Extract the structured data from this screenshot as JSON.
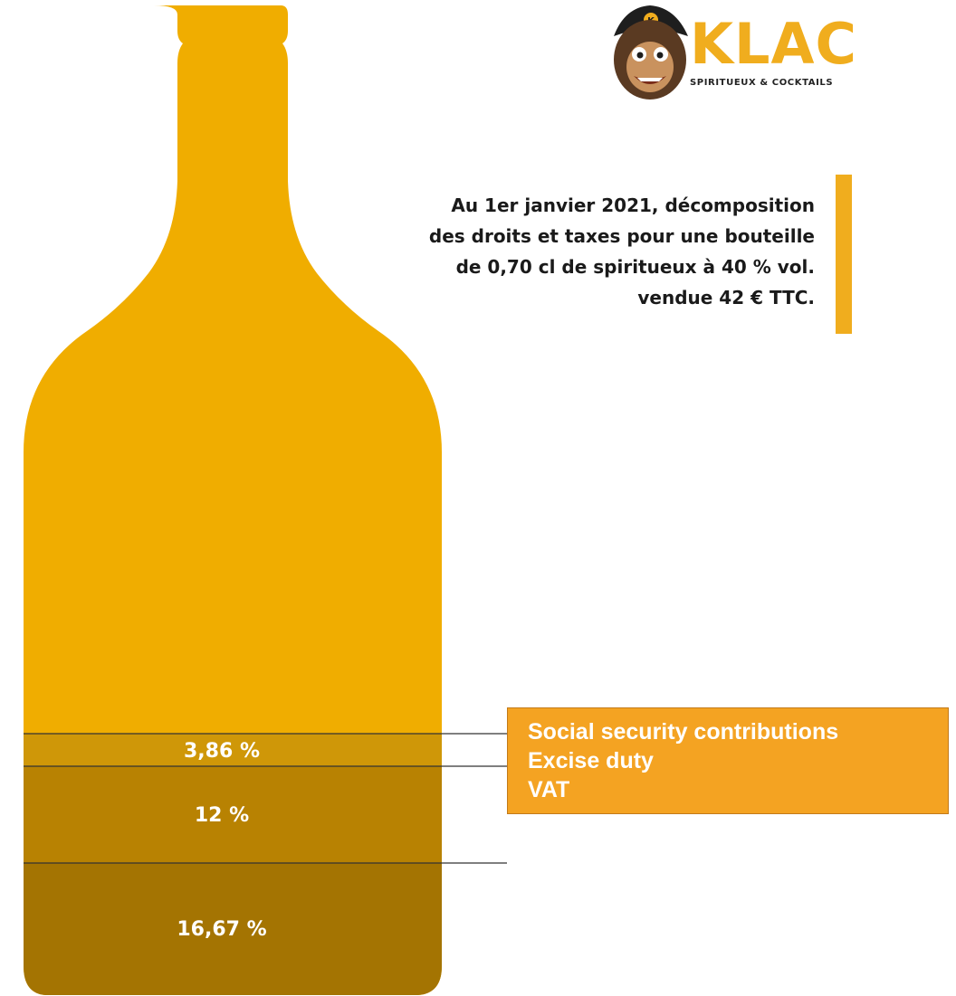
{
  "brand": {
    "name": "KLAC",
    "tagline": "SPIRITUEUX & COCKTAILS"
  },
  "intro": {
    "lines": [
      "Au 1er janvier 2021, décomposition",
      "des droits et taxes pour une bouteille",
      "de 0,70 cl de spiritueux à 40 % vol.",
      "vendue 42 € TTC."
    ]
  },
  "segments": [
    {
      "label": "3,86 %",
      "value": 3.86,
      "legend": "Social security contributions",
      "color": "#cf9708"
    },
    {
      "label": "12 %",
      "value": 12,
      "legend": "Excise duty",
      "color": "#b88202"
    },
    {
      "label": "16,67 %",
      "value": 16.67,
      "legend": "VAT",
      "color": "#a47402"
    }
  ],
  "colors": {
    "bottle": "#f0ad00",
    "accent": "#f0ad1e",
    "legend_box": "#f4a322",
    "divider": "#333333"
  }
}
